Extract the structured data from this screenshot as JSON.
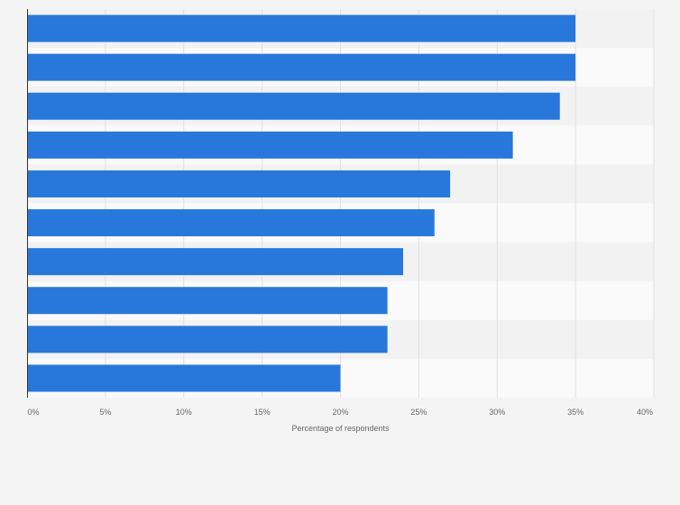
{
  "chart_data": {
    "type": "bar",
    "orientation": "horizontal",
    "title": "",
    "xlabel": "Percentage of respondents",
    "ylabel": "",
    "categories": [
      "",
      "",
      "",
      "",
      "",
      "",
      "",
      "",
      "",
      ""
    ],
    "values": [
      35,
      35,
      34,
      31,
      27,
      26,
      24,
      23,
      23,
      20
    ],
    "xlim": [
      0,
      40
    ],
    "x_ticks": [
      "0%",
      "5%",
      "10%",
      "15%",
      "20%",
      "25%",
      "30%",
      "35%",
      "40%"
    ],
    "grid": true,
    "legend": "none",
    "bar_color": "#2878dc",
    "band_colors": [
      "#f2f2f2",
      "#fafafa"
    ],
    "gridline_color": "#e0e0e0",
    "axis_color": "#333333"
  }
}
